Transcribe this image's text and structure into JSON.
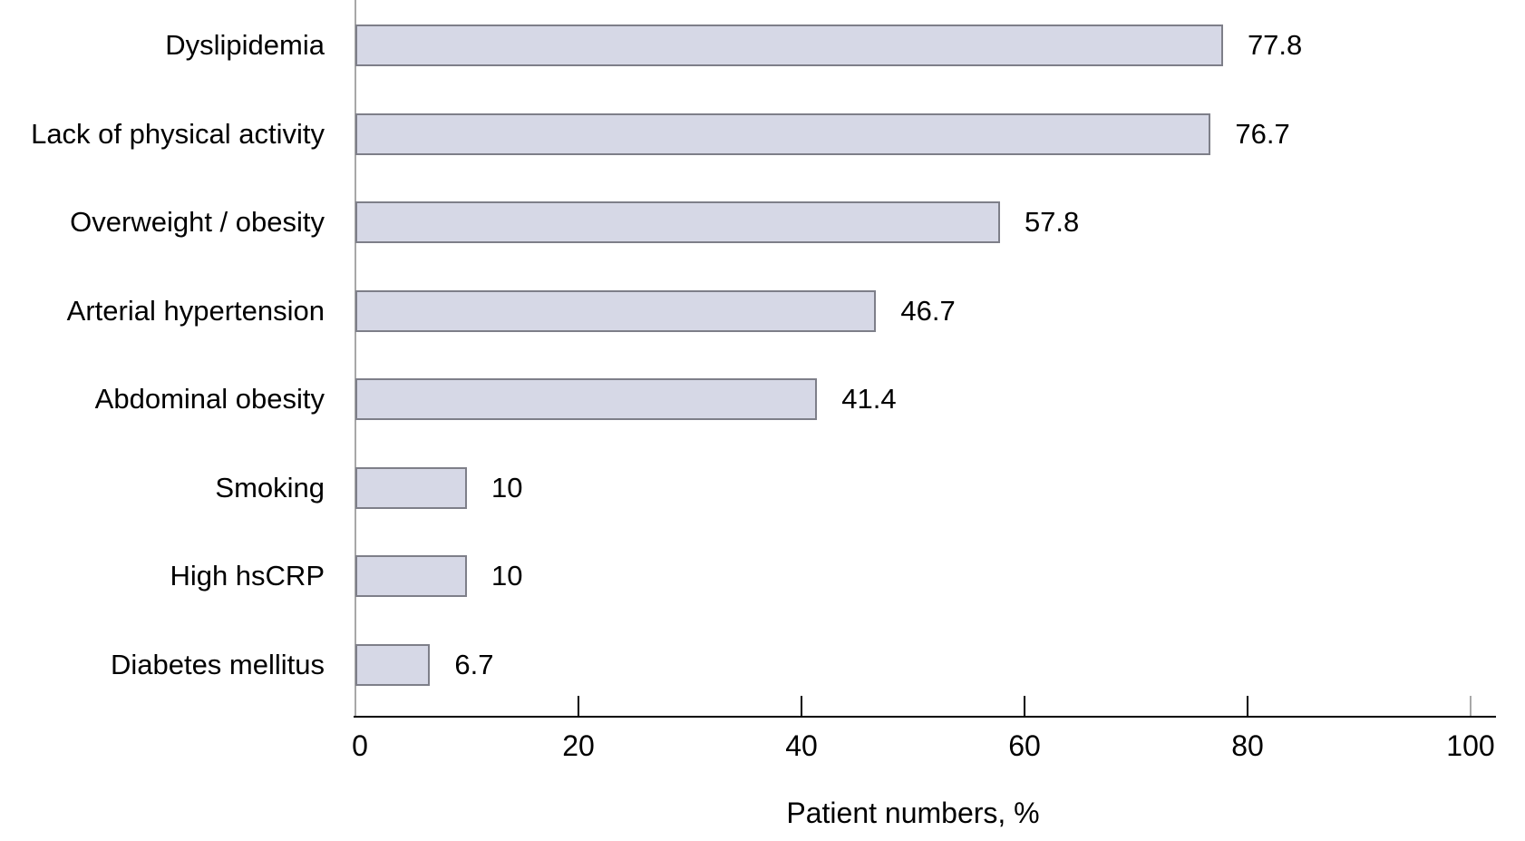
{
  "chart_data": {
    "type": "bar",
    "orientation": "horizontal",
    "title": "",
    "xlabel": "Patient numbers, %",
    "ylabel": "",
    "categories": [
      "Dyslipidemia",
      "Lack of physical activity",
      "Overweight / obesity",
      "Arterial hypertension",
      "Abdominal obesity",
      "Smoking",
      "High hsCRP",
      "Diabetes mellitus"
    ],
    "values": [
      77.8,
      76.7,
      57.8,
      46.7,
      41.4,
      10,
      10,
      6.7
    ],
    "value_labels": [
      "77.8",
      "76.7",
      "57.8",
      "46.7",
      "41.4",
      "10",
      "10",
      "6.7"
    ],
    "xlim": [
      0,
      100
    ],
    "xticks": [
      0,
      20,
      40,
      60,
      80,
      100
    ],
    "grid": false,
    "legend": false,
    "colors": {
      "bar_fill": "#d6d8e6",
      "bar_border": "#7e7f89",
      "y_axis": "#a8a8a8",
      "x_axis": "#000000",
      "tick": "#000000",
      "tick_100": "#a8a8a8",
      "text": "#000000"
    }
  }
}
